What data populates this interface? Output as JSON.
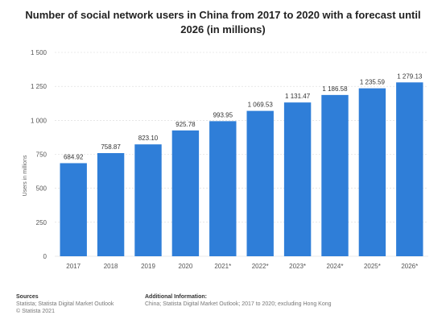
{
  "chart_data": {
    "type": "bar",
    "title": "Number of social network users in China from 2017 to 2020 with a forecast until 2026 (in millions)",
    "xlabel": "",
    "ylabel": "Users in millions",
    "categories": [
      "2017",
      "2018",
      "2019",
      "2020",
      "2021*",
      "2022*",
      "2023*",
      "2024*",
      "2025*",
      "2026*"
    ],
    "values": [
      684.92,
      758.87,
      823.1,
      925.78,
      993.95,
      1069.53,
      1131.47,
      1186.58,
      1235.59,
      1279.13
    ],
    "value_labels": [
      "684.92",
      "758.87",
      "823.10",
      "925.78",
      "993.95",
      "1 069.53",
      "1 131.47",
      "1 186.58",
      "1 235.59",
      "1 279.13"
    ],
    "ylim": [
      0,
      1500
    ],
    "yticks": [
      0,
      250,
      500,
      750,
      1000,
      1250,
      1500
    ],
    "ytick_labels": [
      "0",
      "250",
      "500",
      "750",
      "1 000",
      "1 250",
      "1 500"
    ],
    "grid": true,
    "bar_color": "#2f7ed8",
    "grid_color": "#d8d8d8"
  },
  "footer": {
    "sources_heading": "Sources",
    "sources_lines": [
      "Statista; Statista Digital Market Outlook",
      "© Statista 2021"
    ],
    "info_heading": "Additional Information:",
    "info_lines": [
      "China; Statista Digital Market Outlook; 2017 to 2020; excluding Hong Kong"
    ]
  }
}
